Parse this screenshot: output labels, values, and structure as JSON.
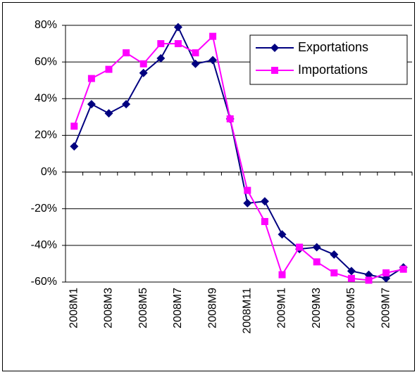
{
  "chart_data": {
    "type": "line",
    "categories": [
      "2008M1",
      null,
      "2008M3",
      null,
      "2008M5",
      null,
      "2008M7",
      null,
      "2008M9",
      null,
      "2008M11",
      null,
      "2009M1",
      null,
      "2009M3",
      null,
      "2009M5",
      null,
      "2009M7",
      null
    ],
    "series": [
      {
        "name": "Exportations",
        "color": "#000080",
        "marker": "diamond",
        "values": [
          14,
          37,
          32,
          37,
          54,
          62,
          79,
          59,
          61,
          29,
          -17,
          -16,
          -34,
          -42,
          -41,
          -45,
          -54,
          -56,
          -58,
          -52
        ]
      },
      {
        "name": "Importations",
        "color": "#ff00ff",
        "marker": "square",
        "values": [
          25,
          51,
          56,
          65,
          59,
          70,
          70,
          65,
          74,
          29,
          -10,
          -27,
          -56,
          -41,
          -49,
          -55,
          -58,
          -59,
          -55,
          -53
        ]
      }
    ],
    "ylim": [
      -60,
      80
    ],
    "yticks": [
      {
        "value": -60,
        "label": "-60%"
      },
      {
        "value": -40,
        "label": "-40%"
      },
      {
        "value": -20,
        "label": "-20%"
      },
      {
        "value": 0,
        "label": "0%"
      },
      {
        "value": 20,
        "label": "20%"
      },
      {
        "value": 40,
        "label": "40%"
      },
      {
        "value": 60,
        "label": "60%"
      },
      {
        "value": 80,
        "label": "80%"
      }
    ],
    "grid": true
  }
}
